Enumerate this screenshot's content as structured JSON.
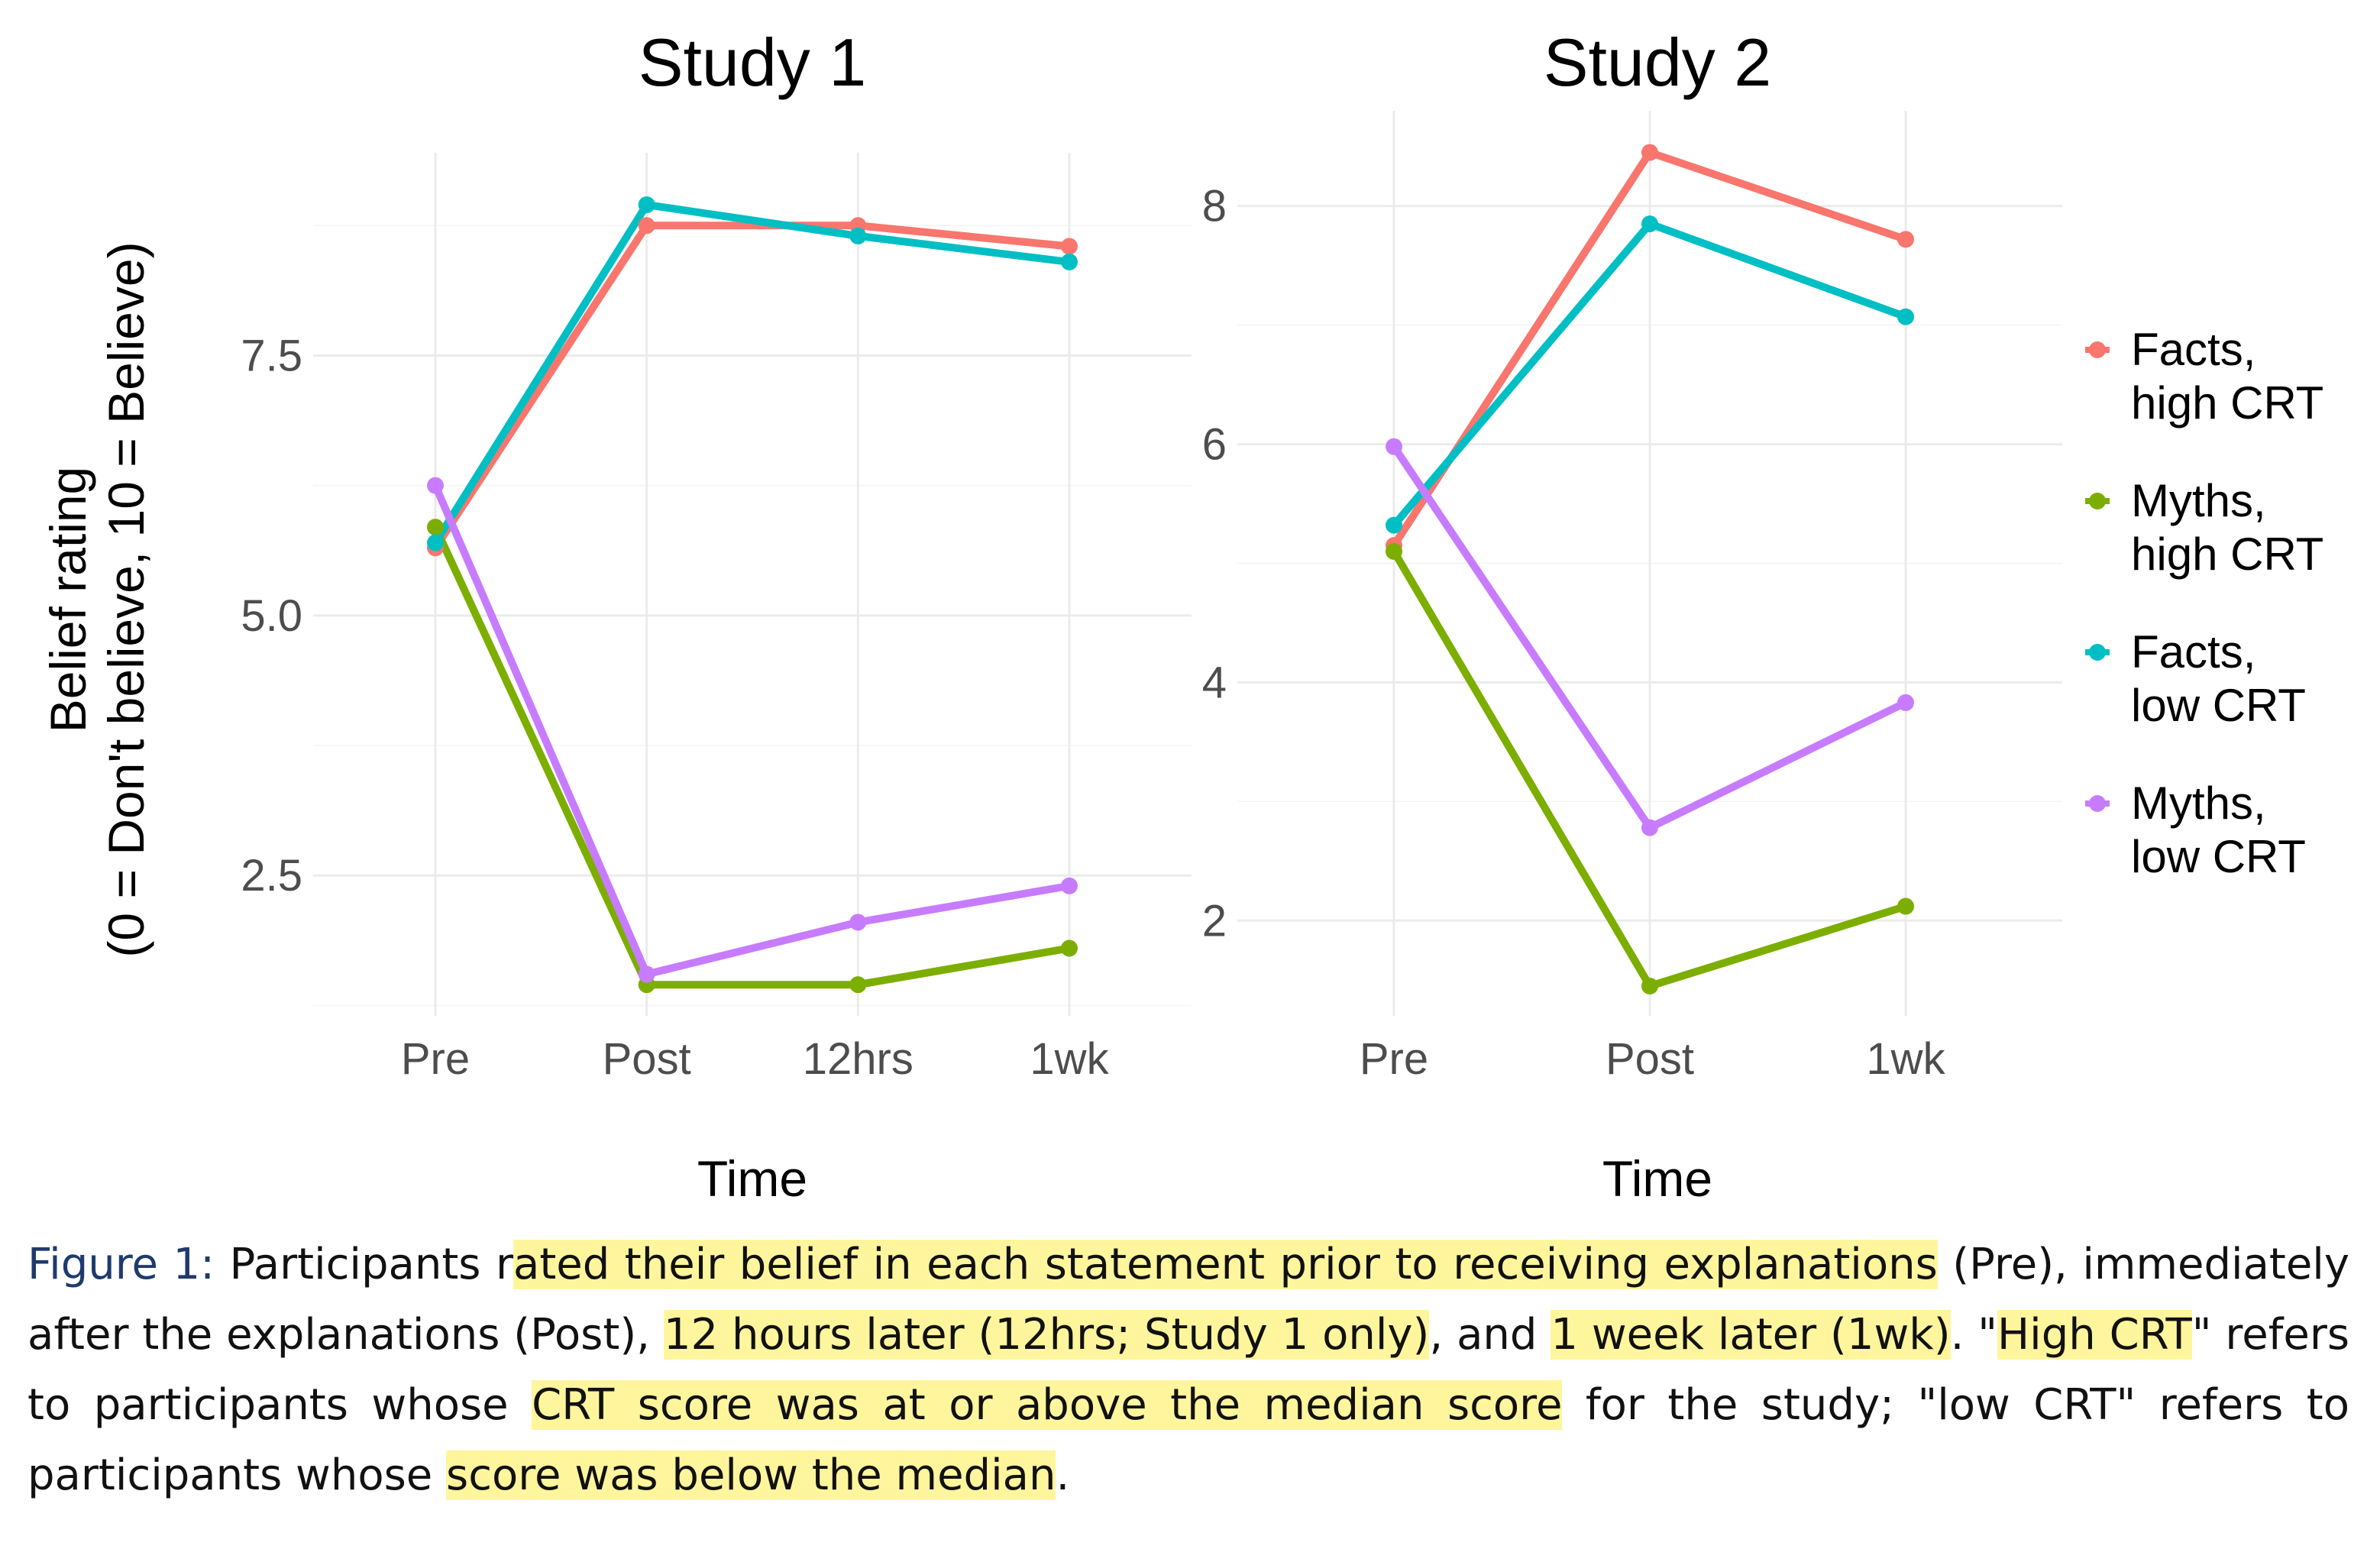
{
  "chart_data": [
    {
      "type": "line",
      "title": "Study 1",
      "xlabel": "Time",
      "ylabel_lines": [
        "Belief rating",
        "(0 = Don't believe, 10 = Believe)"
      ],
      "categories": [
        "Pre",
        "Post",
        "12hrs",
        "1wk"
      ],
      "yticks": [
        2.5,
        5.0,
        7.5
      ],
      "ytick_labels": [
        "2.5",
        "5.0",
        "7.5"
      ],
      "ylim": [
        1.15,
        9.45
      ],
      "grid": true,
      "series": [
        {
          "name": "Facts, high CRT",
          "color": "#f8766d",
          "values": [
            5.65,
            8.75,
            8.75,
            8.55
          ]
        },
        {
          "name": "Myths, high CRT",
          "color": "#7cae00",
          "values": [
            5.85,
            1.45,
            1.45,
            1.8
          ]
        },
        {
          "name": "Facts, low CRT",
          "color": "#00bfc4",
          "values": [
            5.7,
            8.95,
            8.65,
            8.4
          ]
        },
        {
          "name": "Myths, low CRT",
          "color": "#c77cff",
          "values": [
            6.25,
            1.55,
            2.05,
            2.4
          ]
        }
      ]
    },
    {
      "type": "line",
      "title": "Study 2",
      "xlabel": "Time",
      "categories": [
        "Pre",
        "Post",
        "1wk"
      ],
      "yticks": [
        2,
        4,
        6,
        8
      ],
      "ytick_labels": [
        "2",
        "4",
        "6",
        "8"
      ],
      "ylim": [
        1.2,
        8.8
      ],
      "grid": true,
      "series": [
        {
          "name": "Facts, high CRT",
          "color": "#f8766d",
          "values": [
            5.15,
            8.45,
            7.72
          ]
        },
        {
          "name": "Myths, high CRT",
          "color": "#7cae00",
          "values": [
            5.1,
            1.45,
            2.12
          ]
        },
        {
          "name": "Facts, low CRT",
          "color": "#00bfc4",
          "values": [
            5.32,
            7.85,
            7.07
          ]
        },
        {
          "name": "Myths, low CRT",
          "color": "#c77cff",
          "values": [
            5.98,
            2.78,
            3.83
          ]
        }
      ]
    }
  ],
  "legend": {
    "placement": "right",
    "items": [
      {
        "lines": [
          "Facts,",
          "high CRT"
        ],
        "color": "#f8766d"
      },
      {
        "lines": [
          "Myths,",
          "high CRT"
        ],
        "color": "#7cae00"
      },
      {
        "lines": [
          "Facts,",
          "low CRT"
        ],
        "color": "#00bfc4"
      },
      {
        "lines": [
          "Myths,",
          "low CRT"
        ],
        "color": "#c77cff"
      }
    ]
  },
  "caption": {
    "label": "Figure 1:",
    "segments": [
      {
        "text": " Participants r",
        "hl": false
      },
      {
        "text": "ated their belief in each statement prior to receiving explanations",
        "hl": true
      },
      {
        "text": " (Pre), immediately after the explanations (Post), ",
        "hl": false
      },
      {
        "text": "12 hours later (12hrs; Study 1 only)",
        "hl": true
      },
      {
        "text": ", and ",
        "hl": false
      },
      {
        "text": "1 week later (1wk)",
        "hl": true
      },
      {
        "text": ". \"",
        "hl": false
      },
      {
        "text": "High CRT",
        "hl": true
      },
      {
        "text": "\" refers to participants whose ",
        "hl": false
      },
      {
        "text": "CRT score was at or above the median score",
        "hl": true
      },
      {
        "text": " for the study; \"low CRT\" refers to participants whose ",
        "hl": false
      },
      {
        "text": "score was below the median",
        "hl": true
      },
      {
        "text": ".",
        "hl": false
      }
    ]
  }
}
